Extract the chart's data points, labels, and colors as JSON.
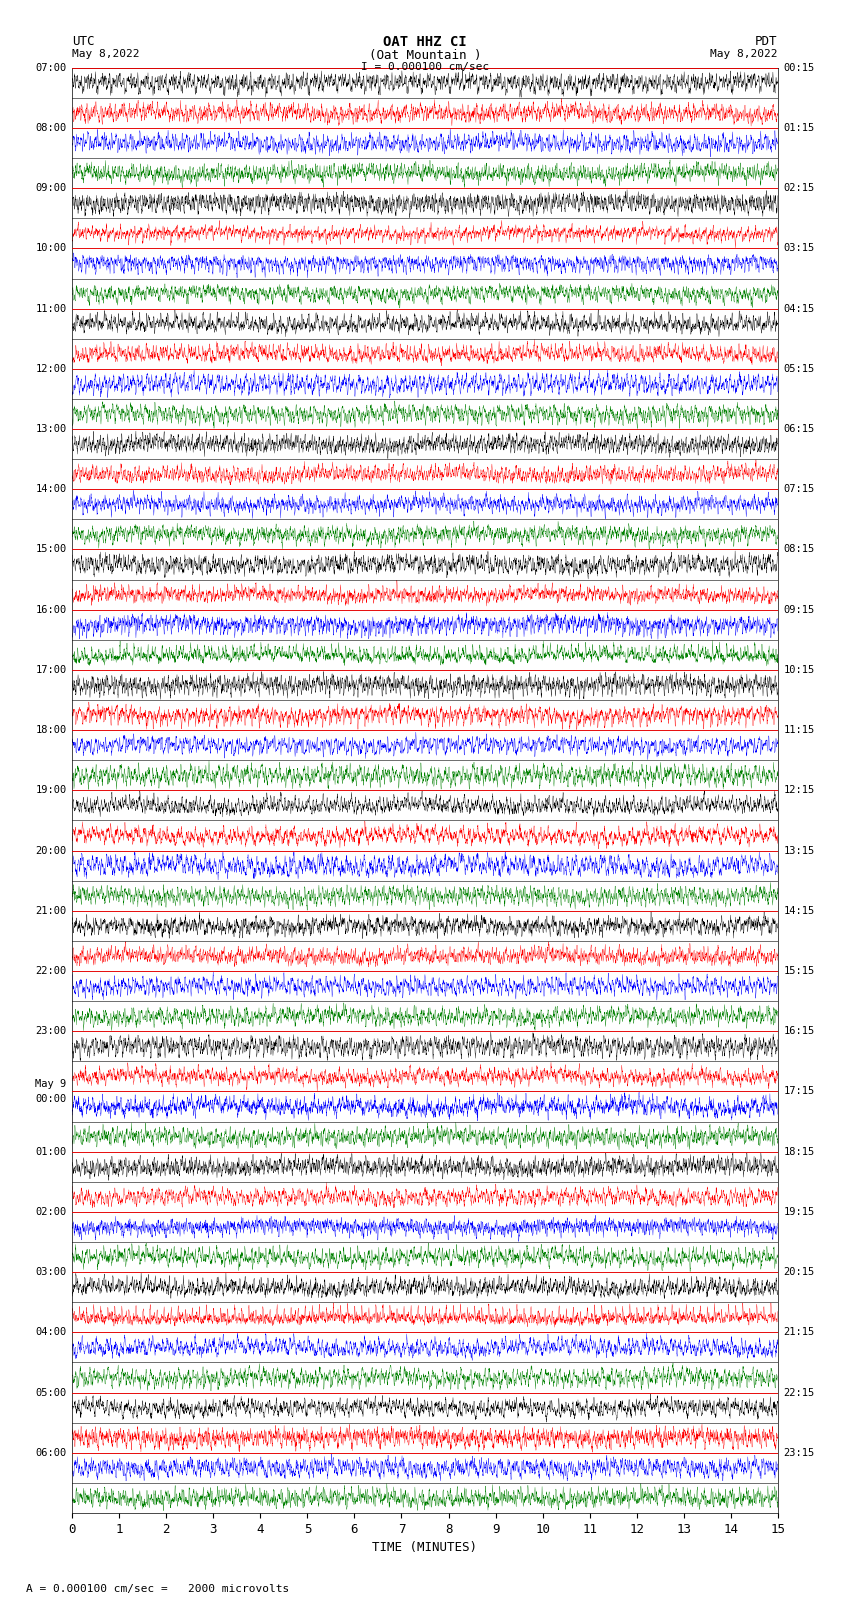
{
  "title_line1": "OAT HHZ CI",
  "title_line2": "(Oat Mountain )",
  "scale_label": "I = 0.000100 cm/sec",
  "left_label": "UTC",
  "right_label": "PDT",
  "left_date": "May 8,2022",
  "right_date": "May 8,2022",
  "bottom_label": "TIME (MINUTES)",
  "footnote": "A = 0.000100 cm/sec =   2000 microvolts",
  "left_times": [
    "07:00",
    "08:00",
    "09:00",
    "10:00",
    "11:00",
    "12:00",
    "13:00",
    "14:00",
    "15:00",
    "16:00",
    "17:00",
    "18:00",
    "19:00",
    "20:00",
    "21:00",
    "22:00",
    "23:00",
    "May 9\n00:00",
    "01:00",
    "02:00",
    "03:00",
    "04:00",
    "05:00",
    "06:00"
  ],
  "right_times": [
    "00:15",
    "01:15",
    "02:15",
    "03:15",
    "04:15",
    "05:15",
    "06:15",
    "07:15",
    "08:15",
    "09:15",
    "10:15",
    "11:15",
    "12:15",
    "13:15",
    "14:15",
    "15:15",
    "16:15",
    "17:15",
    "18:15",
    "19:15",
    "20:15",
    "21:15",
    "22:15",
    "23:15"
  ],
  "n_rows": 48,
  "n_cols": 4500,
  "x_ticks": [
    0,
    1,
    2,
    3,
    4,
    5,
    6,
    7,
    8,
    9,
    10,
    11,
    12,
    13,
    14,
    15
  ],
  "colors": [
    "black",
    "red",
    "blue",
    "green"
  ],
  "bg_color": "white",
  "figsize": [
    8.5,
    16.13
  ],
  "dpi": 100
}
